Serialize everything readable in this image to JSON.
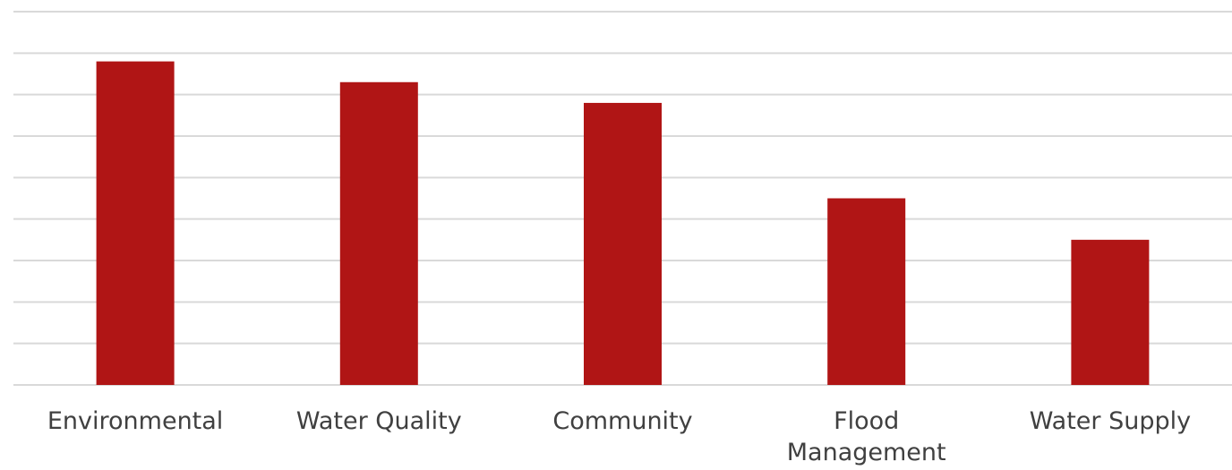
{
  "chart_data": {
    "type": "bar",
    "categories": [
      "Environmental",
      "Water Quality",
      "Community",
      "Flood Management",
      "Water Supply"
    ],
    "values": [
      7.8,
      7.3,
      6.8,
      4.5,
      3.5
    ],
    "title": "",
    "xlabel": "",
    "ylabel": "",
    "ylim": [
      0,
      9
    ],
    "grid": true,
    "y_tick_labels_shown": false,
    "legend": "none",
    "colors": {
      "bar": "#b01515",
      "grid": "#d9d9d9",
      "label": "#404040"
    }
  }
}
